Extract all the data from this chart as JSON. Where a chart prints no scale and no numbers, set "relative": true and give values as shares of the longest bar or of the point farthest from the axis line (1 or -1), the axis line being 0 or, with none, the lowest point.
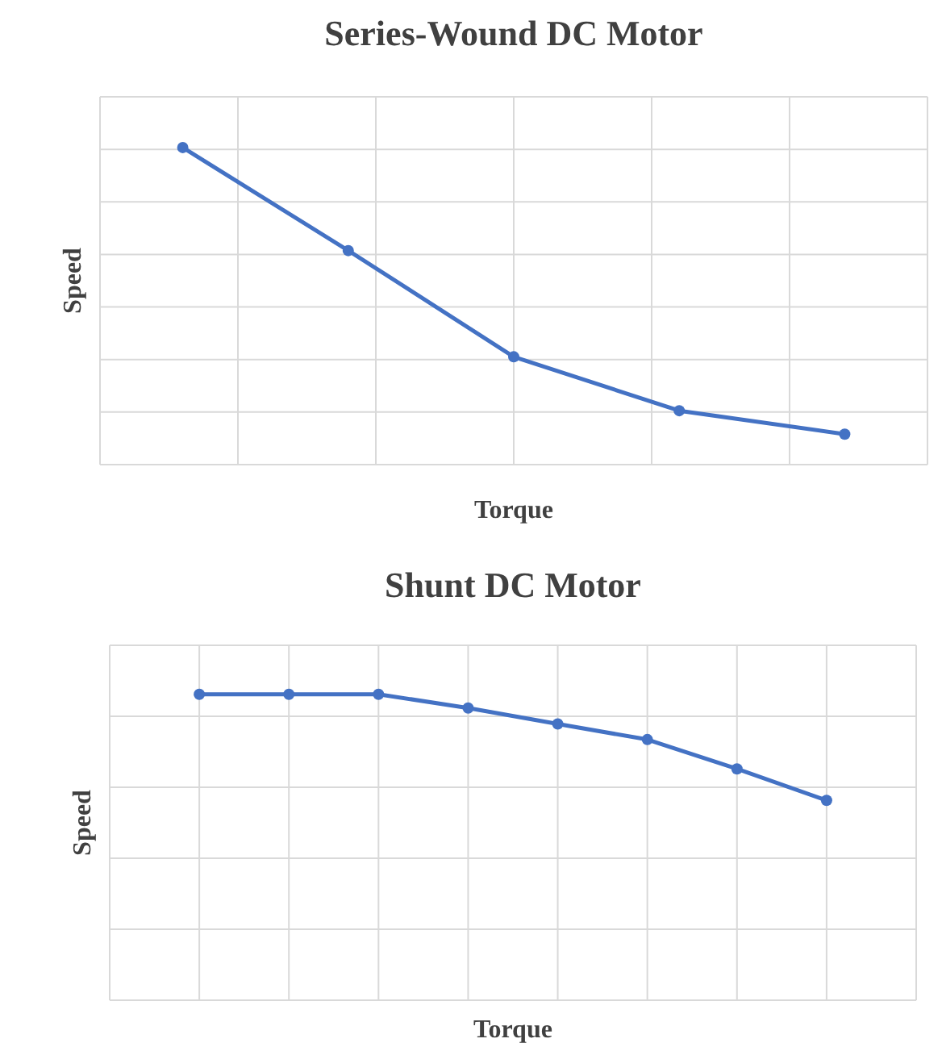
{
  "chart_data": [
    {
      "type": "line",
      "title": "Series-Wound DC Motor",
      "xlabel": "Torque",
      "ylabel": "Speed",
      "relative": true,
      "categories": [
        null,
        null,
        null,
        null,
        null
      ],
      "series": [
        {
          "color": "#4472c4",
          "values": [
            1,
            0.675,
            0.34,
            0.17,
            0.096
          ]
        }
      ],
      "grid": true,
      "marker": "circle"
    },
    {
      "type": "line",
      "title": "Shunt DC Motor",
      "xlabel": "Torque",
      "ylabel": "Speed",
      "relative": true,
      "categories": [
        null,
        null,
        null,
        null,
        null,
        null,
        null,
        null
      ],
      "series": [
        {
          "color": "#4472c4",
          "values": [
            1,
            1,
            1,
            0.955,
            0.903,
            0.852,
            0.756,
            0.653
          ]
        }
      ],
      "grid": true,
      "marker": "circle"
    }
  ]
}
